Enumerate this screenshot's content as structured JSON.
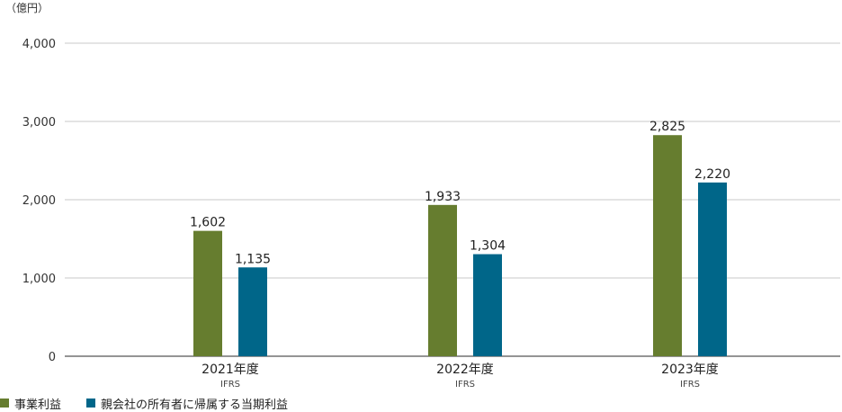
{
  "chart_data": {
    "type": "bar",
    "unit_label": "（億円）",
    "categories": [
      "2021年度",
      "2022年度",
      "2023年度"
    ],
    "category_sublabels": [
      "IFRS",
      "IFRS",
      "IFRS"
    ],
    "series": [
      {
        "name": "事業利益",
        "values": [
          1602,
          1933,
          2825
        ],
        "color": "#667d2f"
      },
      {
        "name": "親会社の所有者に帰属する当期利益",
        "values": [
          1135,
          1304,
          2220
        ],
        "color": "#006689"
      }
    ],
    "value_labels": [
      [
        "1,602",
        "1,933",
        "2,825"
      ],
      [
        "1,135",
        "1,304",
        "2,220"
      ]
    ],
    "yticks": [
      0,
      1000,
      2000,
      3000,
      4000
    ],
    "ytick_labels": [
      "0",
      "1,000",
      "2,000",
      "3,000",
      "4,000"
    ],
    "ylim": [
      0,
      4000
    ],
    "grid": true,
    "legend_position": "bottom-left"
  }
}
